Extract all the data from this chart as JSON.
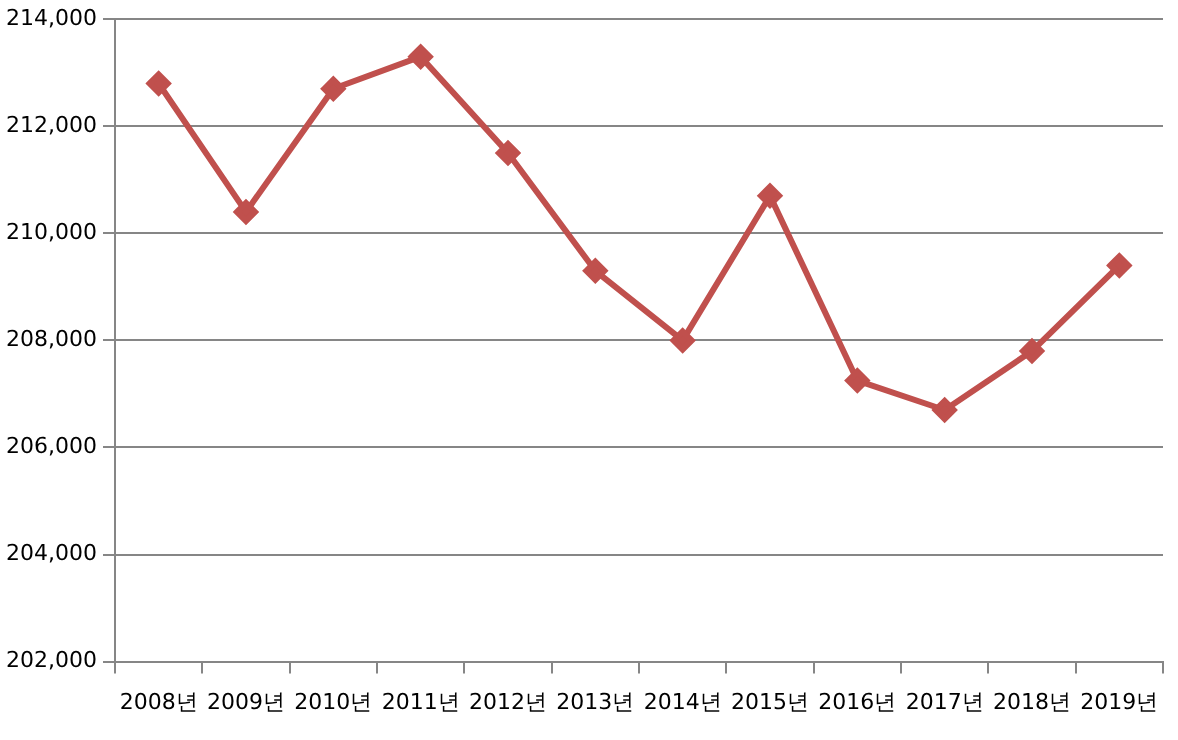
{
  "chart_data": {
    "type": "line",
    "categories": [
      "2008년",
      "2009년",
      "2010년",
      "2011년",
      "2012년",
      "2013년",
      "2014년",
      "2015년",
      "2016년",
      "2017년",
      "2018년",
      "2019년"
    ],
    "series": [
      {
        "color": "#c0504d",
        "values": [
          212800,
          210400,
          212700,
          213300,
          211500,
          209300,
          208000,
          210700,
          207250,
          206700,
          207800,
          209400
        ]
      }
    ],
    "ylim": [
      202000,
      214000
    ],
    "yticks": [
      {
        "value": 202000,
        "label": "202,000"
      },
      {
        "value": 204000,
        "label": "204,000"
      },
      {
        "value": 206000,
        "label": "206,000"
      },
      {
        "value": 208000,
        "label": "208,000"
      },
      {
        "value": 210000,
        "label": "210,000"
      },
      {
        "value": 212000,
        "label": "212,000"
      },
      {
        "value": 214000,
        "label": "214,000"
      }
    ],
    "grid": "y",
    "legend": false,
    "marker": "diamond",
    "line_style": "solid"
  }
}
